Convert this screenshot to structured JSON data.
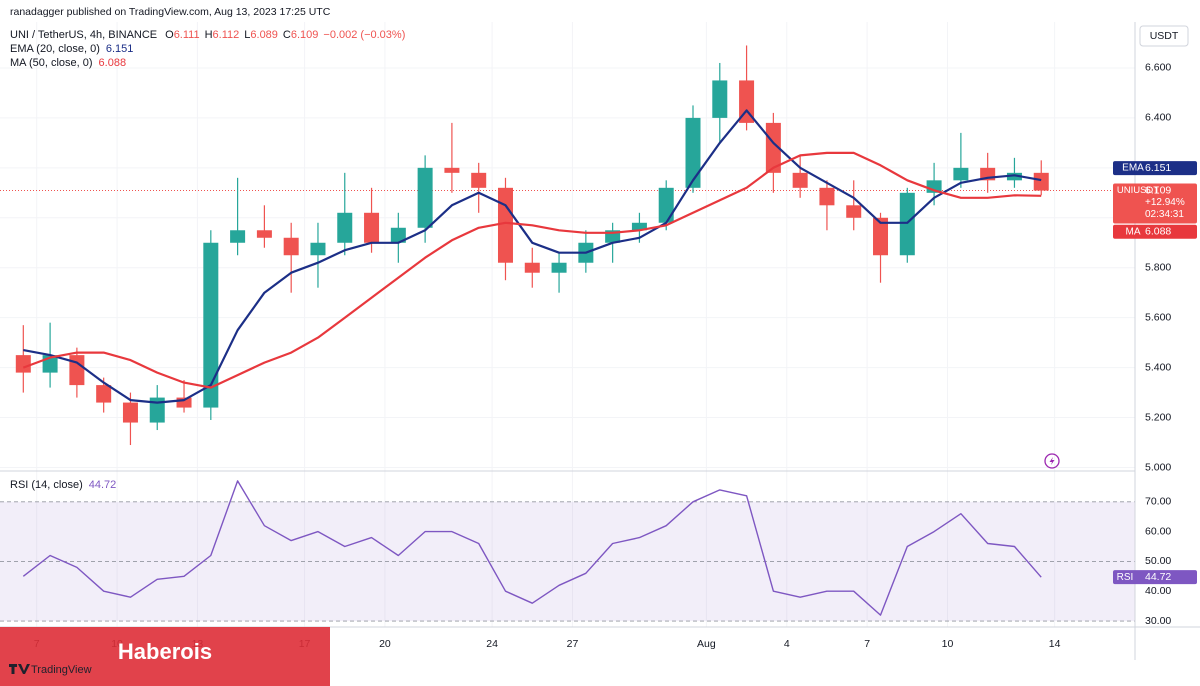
{
  "header": {
    "published": "ranadagger published on TradingView.com, Aug 13, 2023 17:25 UTC",
    "symbol": "UNI / TetherUS, 4h, BINANCE",
    "ohlc": [
      [
        "O",
        "6.111"
      ],
      [
        "H",
        "6.112"
      ],
      [
        "L",
        "6.089"
      ],
      [
        "C",
        "6.109"
      ]
    ],
    "change": "−0.002 (−0.03%)",
    "watermark": "Haberois",
    "brand": "TradingView"
  },
  "chart_data": [
    {
      "type": "candlestick",
      "currency": "USDT",
      "symbol_label": "UNIUSDT",
      "last_change": "+12.94%",
      "countdown": "02:34:31",
      "open": [
        5.45,
        5.38,
        5.45,
        5.33,
        5.26,
        5.18,
        5.28,
        5.24,
        5.9,
        5.95,
        5.92,
        5.85,
        5.9,
        6.02,
        5.9,
        5.96,
        6.2,
        6.18,
        6.12,
        5.82,
        5.78,
        5.82,
        5.9,
        5.95,
        5.98,
        6.12,
        6.4,
        6.55,
        6.38,
        6.18,
        6.12,
        6.05,
        6.0,
        5.85,
        6.1,
        6.15,
        6.2,
        6.15,
        6.18
      ],
      "high": [
        5.57,
        5.58,
        5.48,
        5.36,
        5.3,
        5.33,
        5.35,
        5.95,
        6.16,
        6.05,
        5.98,
        5.98,
        6.18,
        6.12,
        6.02,
        6.25,
        6.38,
        6.22,
        6.16,
        5.88,
        5.86,
        5.95,
        5.98,
        6.02,
        6.15,
        6.45,
        6.62,
        6.69,
        6.42,
        6.25,
        6.15,
        6.15,
        6.02,
        6.12,
        6.22,
        6.34,
        6.26,
        6.24,
        6.23
      ],
      "low": [
        5.3,
        5.32,
        5.28,
        5.22,
        5.09,
        5.15,
        5.22,
        5.19,
        5.85,
        5.88,
        5.7,
        5.72,
        5.85,
        5.86,
        5.82,
        5.9,
        6.1,
        6.02,
        5.75,
        5.72,
        5.7,
        5.78,
        5.82,
        5.9,
        5.95,
        6.1,
        6.3,
        6.35,
        6.1,
        6.08,
        5.95,
        5.95,
        5.74,
        5.82,
        6.05,
        6.12,
        6.1,
        6.12,
        6.09
      ],
      "close": [
        5.38,
        5.45,
        5.33,
        5.26,
        5.18,
        5.28,
        5.24,
        5.9,
        5.95,
        5.92,
        5.85,
        5.9,
        6.02,
        5.9,
        5.96,
        6.2,
        6.18,
        6.12,
        5.82,
        5.78,
        5.82,
        5.9,
        5.95,
        5.98,
        6.12,
        6.4,
        6.55,
        6.38,
        6.18,
        6.12,
        6.05,
        6.0,
        5.85,
        6.1,
        6.15,
        6.2,
        6.15,
        6.18,
        6.109
      ],
      "up_color": "#26a69a",
      "down_color": "#ef5350",
      "series": [
        {
          "name": "EMA (20, close, 0)",
          "short": "EMA",
          "color": "#1c2f87",
          "values": [
            5.47,
            5.45,
            5.42,
            5.34,
            5.27,
            5.26,
            5.27,
            5.33,
            5.55,
            5.7,
            5.78,
            5.82,
            5.87,
            5.9,
            5.9,
            5.95,
            6.05,
            6.1,
            6.05,
            5.9,
            5.86,
            5.86,
            5.9,
            5.92,
            5.98,
            6.15,
            6.3,
            6.43,
            6.3,
            6.2,
            6.14,
            6.08,
            5.98,
            5.98,
            6.08,
            6.14,
            6.16,
            6.17,
            6.151
          ]
        },
        {
          "name": "MA (50, close, 0)",
          "short": "MA",
          "color": "#e8383d",
          "values": [
            5.4,
            5.44,
            5.46,
            5.46,
            5.43,
            5.38,
            5.34,
            5.32,
            5.37,
            5.42,
            5.46,
            5.52,
            5.6,
            5.68,
            5.76,
            5.84,
            5.91,
            5.96,
            5.98,
            5.97,
            5.95,
            5.94,
            5.94,
            5.95,
            5.97,
            6.02,
            6.07,
            6.12,
            6.2,
            6.25,
            6.26,
            6.26,
            6.21,
            6.15,
            6.11,
            6.08,
            6.08,
            6.09,
            6.088
          ]
        }
      ],
      "xlim": [
        -0.37,
        42
      ],
      "xticks": [
        {
          "value": 1,
          "label": "7"
        },
        {
          "value": 4,
          "label": "10"
        },
        {
          "value": 7,
          "label": "13"
        },
        {
          "value": 11,
          "label": "17"
        },
        {
          "value": 14,
          "label": "20"
        },
        {
          "value": 18,
          "label": "24"
        },
        {
          "value": 21,
          "label": "27"
        },
        {
          "value": 26,
          "label": "Aug"
        },
        {
          "value": 29,
          "label": "4"
        },
        {
          "value": 32,
          "label": "7"
        },
        {
          "value": 35,
          "label": "10"
        },
        {
          "value": 39,
          "label": "14"
        }
      ],
      "ylim": [
        4.99,
        6.784
      ],
      "yticks": [
        {
          "value": 5,
          "label": "5.000"
        },
        {
          "value": 5.2,
          "label": "5.200"
        },
        {
          "value": 5.4,
          "label": "5.400"
        },
        {
          "value": 5.6,
          "label": "5.600"
        },
        {
          "value": 5.8,
          "label": "5.800"
        },
        {
          "value": 6,
          "label": "6.000"
        },
        {
          "value": 6.2,
          "label": "6.200"
        },
        {
          "value": 6.4,
          "label": "6.400"
        },
        {
          "value": 6.6,
          "label": "6.600"
        }
      ],
      "grid": true
    },
    {
      "type": "line",
      "title": "RSI (14, close)",
      "series": [
        {
          "name": "RSI",
          "color": "#7e57c2",
          "values": [
            45,
            52,
            48,
            40,
            38,
            44,
            45,
            52,
            77,
            62,
            57,
            60,
            55,
            58,
            52,
            60,
            60,
            56,
            40,
            36,
            42,
            46,
            56,
            58,
            62,
            70,
            74,
            72,
            40,
            38,
            40,
            40,
            32,
            55,
            60,
            66,
            56,
            55,
            44.72
          ]
        }
      ],
      "ylim": [
        28,
        80
      ],
      "yticks": [
        {
          "value": 30,
          "label": "30.00"
        },
        {
          "value": 40,
          "label": "40.00"
        },
        {
          "value": 50,
          "label": "50.00"
        },
        {
          "value": 60,
          "label": "60.00"
        },
        {
          "value": 70,
          "label": "70.00"
        }
      ]
    }
  ]
}
